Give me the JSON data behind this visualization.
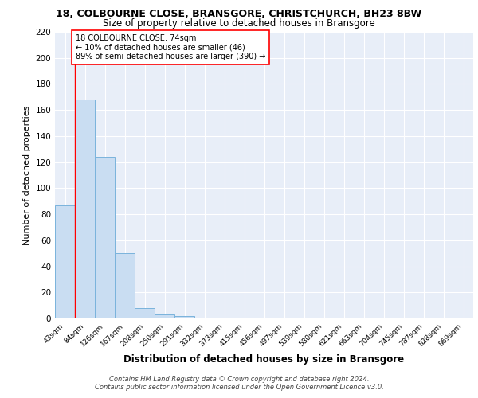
{
  "title_line1": "18, COLBOURNE CLOSE, BRANSGORE, CHRISTCHURCH, BH23 8BW",
  "title_line2": "Size of property relative to detached houses in Bransgore",
  "xlabel": "Distribution of detached houses by size in Bransgore",
  "ylabel": "Number of detached properties",
  "bin_labels": [
    "43sqm",
    "84sqm",
    "126sqm",
    "167sqm",
    "208sqm",
    "250sqm",
    "291sqm",
    "332sqm",
    "373sqm",
    "415sqm",
    "456sqm",
    "497sqm",
    "539sqm",
    "580sqm",
    "621sqm",
    "663sqm",
    "704sqm",
    "745sqm",
    "787sqm",
    "828sqm",
    "869sqm"
  ],
  "bar_heights": [
    87,
    168,
    124,
    50,
    8,
    3,
    2,
    0,
    0,
    0,
    0,
    0,
    0,
    0,
    0,
    0,
    0,
    0,
    0,
    0,
    0
  ],
  "bar_color": "#c9ddf2",
  "bar_edge_color": "#7ab3dc",
  "annotation_text": "18 COLBOURNE CLOSE: 74sqm\n← 10% of detached houses are smaller (46)\n89% of semi-detached houses are larger (390) →",
  "ylim": [
    0,
    220
  ],
  "yticks": [
    0,
    20,
    40,
    60,
    80,
    100,
    120,
    140,
    160,
    180,
    200,
    220
  ],
  "footer_line1": "Contains HM Land Registry data © Crown copyright and database right 2024.",
  "footer_line2": "Contains public sector information licensed under the Open Government Licence v3.0.",
  "plot_bg_color": "#e8eef8"
}
